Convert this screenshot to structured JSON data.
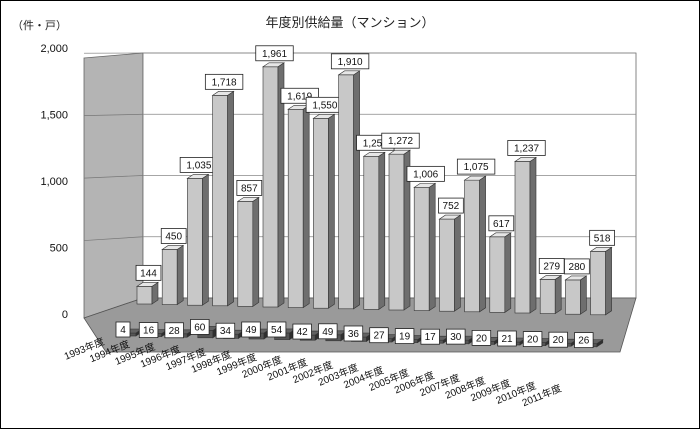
{
  "chart_data": {
    "type": "bar",
    "title": "年度別供給量（マンション）",
    "unit_label": "（件・戸）",
    "yticks": [
      "0",
      "500",
      "1,000",
      "1,500",
      "2,000"
    ],
    "ylim": [
      0,
      2000
    ],
    "categories": [
      "1993年度",
      "1994年度",
      "1995年度",
      "1996年度",
      "1997年度",
      "1998年度",
      "1999年度",
      "2000年度",
      "2001年度",
      "2002年度",
      "2003年度",
      "2004年度",
      "2005年度",
      "2006年度",
      "2007年度",
      "2008年度",
      "2009年度",
      "2010年度",
      "2011年度"
    ],
    "series": [
      {
        "values": [
          4,
          16,
          28,
          60,
          34,
          49,
          54,
          42,
          49,
          36,
          27,
          19,
          17,
          30,
          20,
          21,
          20,
          20,
          26
        ],
        "labels": [
          "4",
          "16",
          "28",
          "60",
          "34",
          "49",
          "54",
          "42",
          "49",
          "36",
          "27",
          "19",
          "17",
          "30",
          "20",
          "21",
          "20",
          "20",
          "26"
        ],
        "color": "#555555"
      },
      {
        "values": [
          144,
          450,
          1035,
          1718,
          857,
          1961,
          1619,
          1550,
          1910,
          1250,
          1272,
          1006,
          752,
          1075,
          617,
          1237,
          279,
          280,
          518
        ],
        "labels": [
          "144",
          "450",
          "1,035",
          "1,718",
          "857",
          "1,961",
          "1,619",
          "1,550",
          "1,910",
          "1,250",
          "1,272",
          "1,006",
          "752",
          "1,075",
          "617",
          "1,237",
          "279",
          "280",
          "518"
        ],
        "color": "#c8c8c8"
      }
    ],
    "grid": true,
    "legend": "none"
  }
}
